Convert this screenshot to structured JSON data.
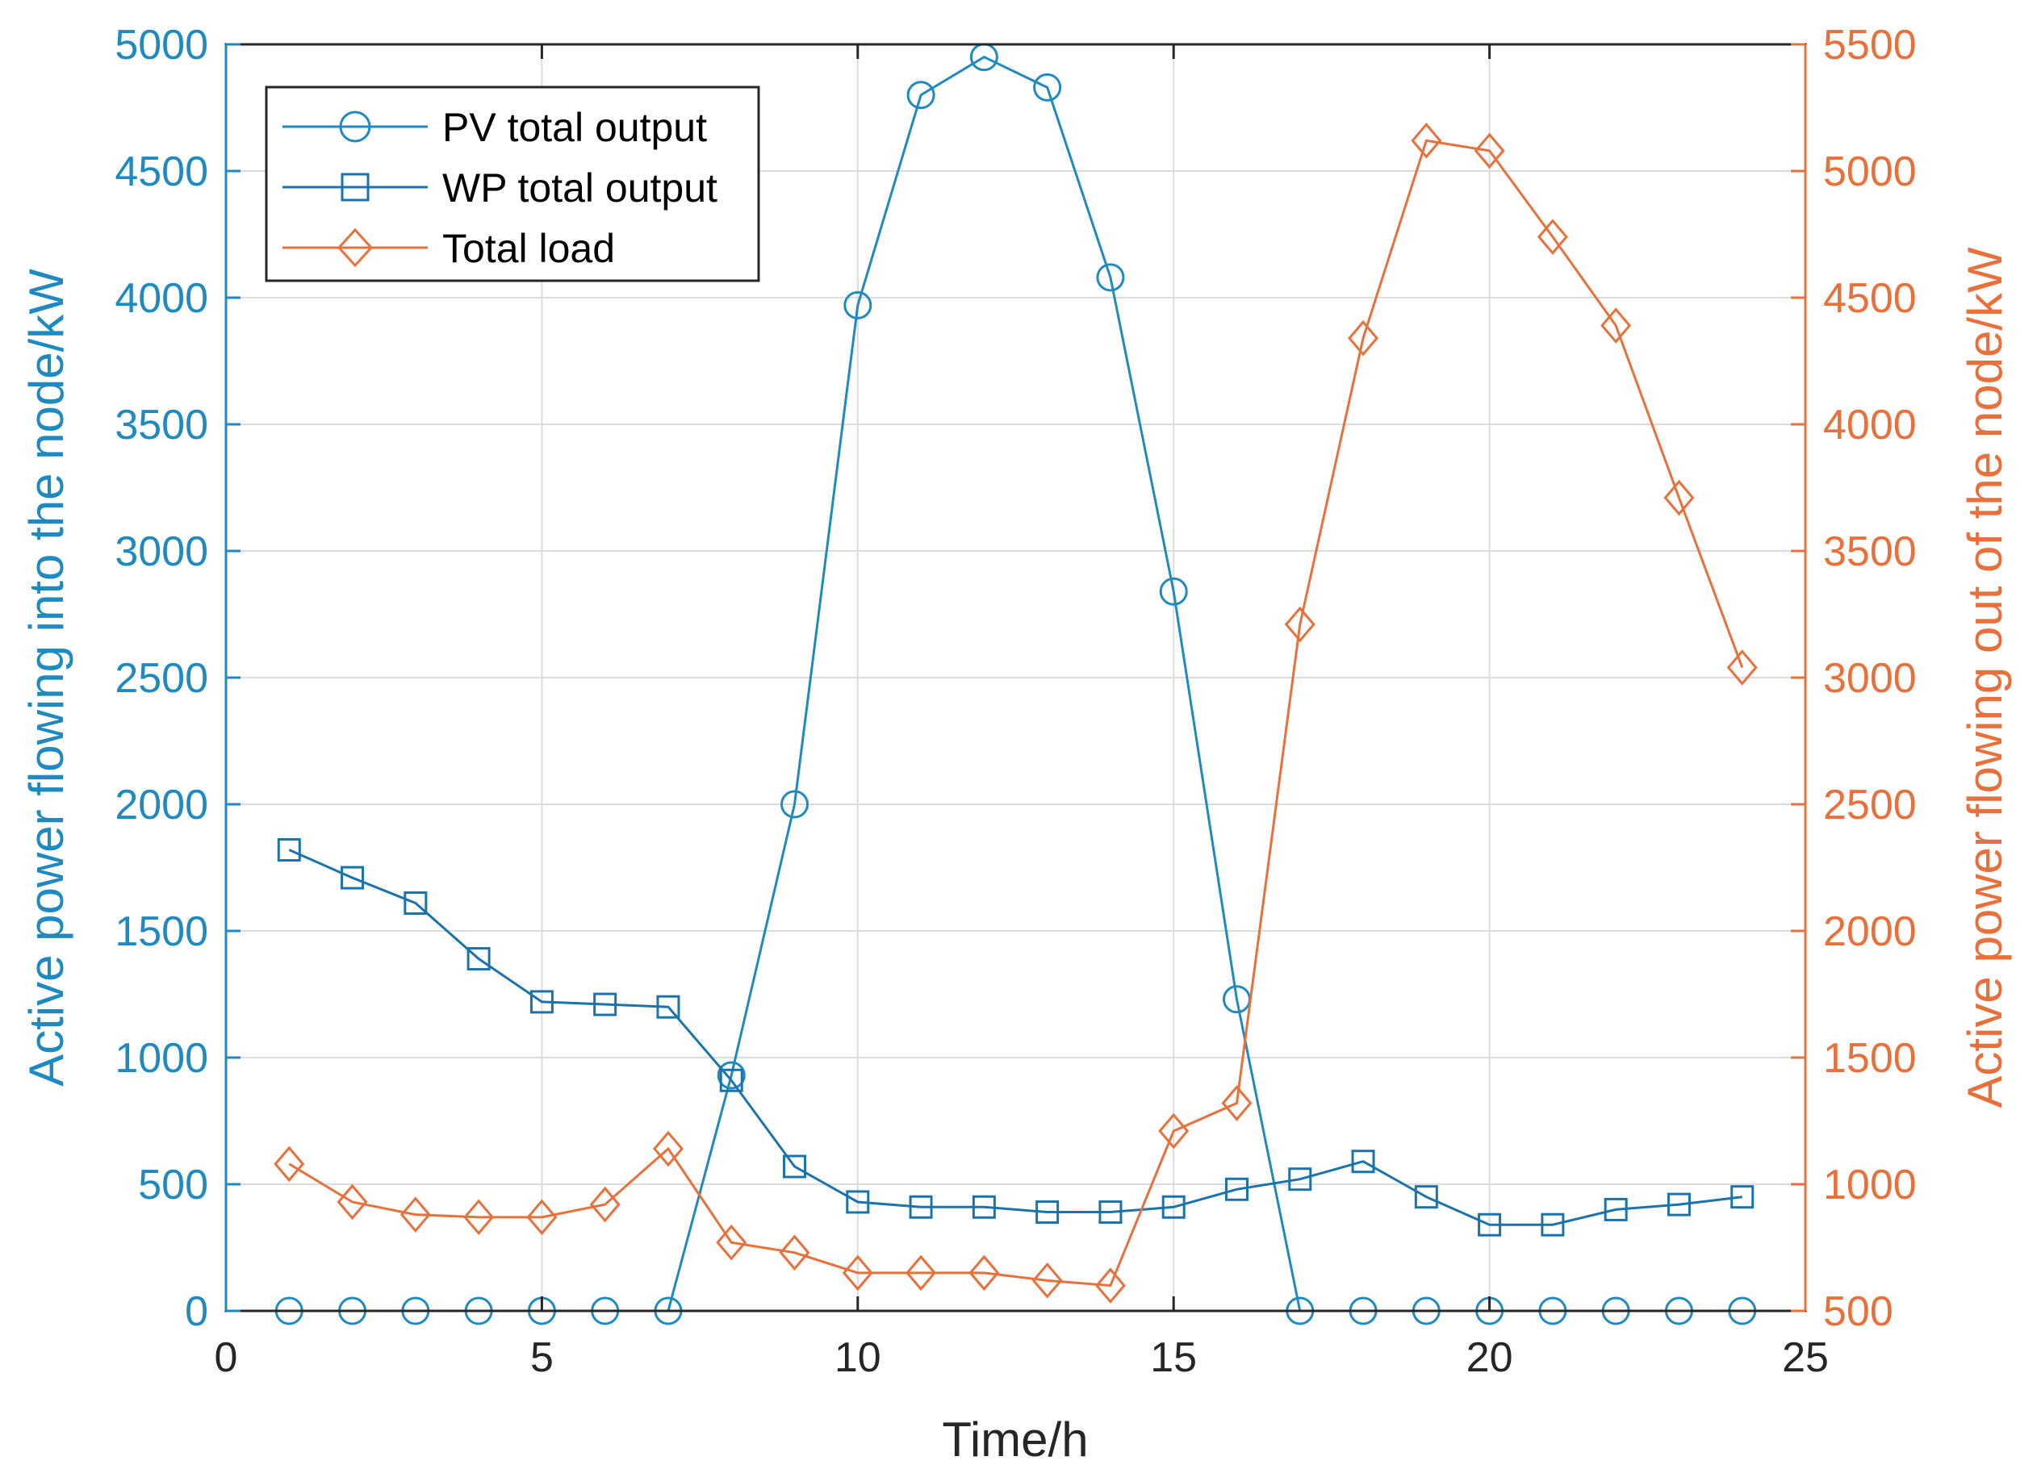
{
  "colors": {
    "pv": "#1f8ac0",
    "wp": "#1a73ab",
    "load": "#e8703a",
    "left_axis": "#1f8ac0",
    "right_axis": "#e8703a",
    "grid": "#dcdcdc"
  },
  "chart_data": {
    "type": "line",
    "title": "",
    "xlabel": "Time/h",
    "ylabel_left": "Active power flowing into the node/kW",
    "ylabel_right": "Active power flowing out of the node/kW",
    "xlim": [
      0,
      25
    ],
    "ylim_left": [
      0,
      5000
    ],
    "ylim_right": [
      500,
      5500
    ],
    "xticks": [
      "0",
      "5",
      "10",
      "15",
      "20",
      "25"
    ],
    "yticks_left": [
      "0",
      "500",
      "1000",
      "1500",
      "2000",
      "2500",
      "3000",
      "3500",
      "4000",
      "4500",
      "5000"
    ],
    "yticks_right": [
      "500",
      "1000",
      "1500",
      "2000",
      "2500",
      "3000",
      "3500",
      "4000",
      "4500",
      "5000",
      "5500"
    ],
    "grid": true,
    "legend_position": "top-left",
    "x": [
      1,
      2,
      3,
      4,
      5,
      6,
      7,
      8,
      9,
      10,
      11,
      12,
      13,
      14,
      15,
      16,
      17,
      18,
      19,
      20,
      21,
      22,
      23,
      24
    ],
    "series": [
      {
        "name": "PV total output",
        "axis": "left",
        "marker": "circle",
        "color_key": "pv",
        "values": [
          0,
          0,
          0,
          0,
          0,
          0,
          0,
          930,
          2000,
          3970,
          4800,
          4950,
          4830,
          4080,
          2840,
          1230,
          0,
          0,
          0,
          0,
          0,
          0,
          0,
          0
        ]
      },
      {
        "name": "WP total output",
        "axis": "left",
        "marker": "square",
        "color_key": "wp",
        "values": [
          1820,
          1710,
          1610,
          1390,
          1220,
          1210,
          1200,
          910,
          570,
          430,
          410,
          410,
          390,
          390,
          410,
          480,
          520,
          590,
          450,
          340,
          340,
          400,
          420,
          450
        ]
      },
      {
        "name": "Total load",
        "axis": "right",
        "marker": "diamond",
        "color_key": "load",
        "values": [
          1080,
          930,
          880,
          870,
          870,
          920,
          1140,
          770,
          730,
          650,
          650,
          650,
          620,
          600,
          1210,
          1320,
          3210,
          4340,
          5120,
          5080,
          4740,
          4390,
          3710,
          3040
        ]
      }
    ]
  }
}
